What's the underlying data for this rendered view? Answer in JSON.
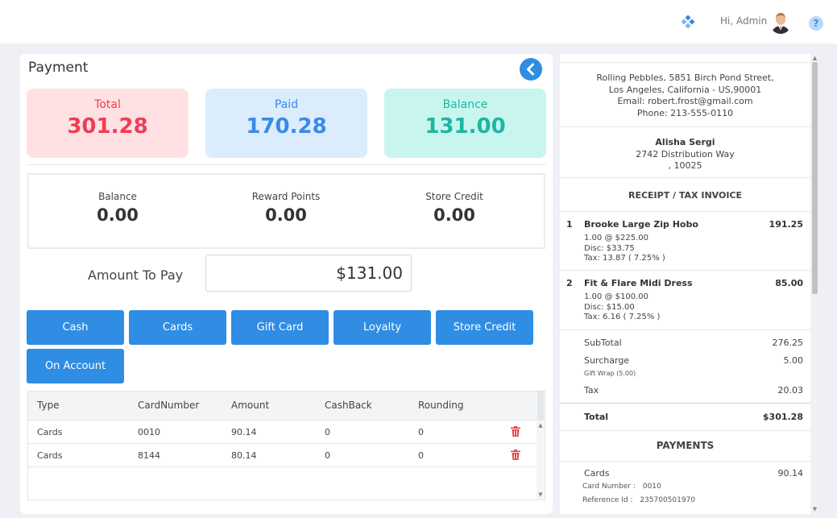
{
  "header": {
    "greeting": "Hi, Admin",
    "help_glyph": "?",
    "icons": [
      "diamond-grid-icon",
      "avatar",
      "help-icon"
    ]
  },
  "payment": {
    "title": "Payment",
    "summary": {
      "total_label": "Total",
      "total_value": "301.28",
      "paid_label": "Paid",
      "paid_value": "170.28",
      "balance_label": "Balance",
      "balance_value": "131.00"
    },
    "info": {
      "balance_label": "Balance",
      "balance_value": "0.00",
      "reward_label": "Reward Points",
      "reward_value": "0.00",
      "credit_label": "Store Credit",
      "credit_value": "0.00"
    },
    "amount_to_pay_label": "Amount To Pay",
    "amount_to_pay_value": "$131.00",
    "buttons": [
      "Cash",
      "Cards",
      "Gift Card",
      "Loyalty",
      "Store Credit",
      "On Account"
    ],
    "table": {
      "headers": [
        "Type",
        "CardNumber",
        "Amount",
        "CashBack",
        "Rounding"
      ],
      "rows": [
        [
          "Cards",
          "0010",
          "90.14",
          "0",
          "0"
        ],
        [
          "Cards",
          "8144",
          "80.14",
          "0",
          "0"
        ]
      ]
    }
  },
  "receipt": {
    "store_address": [
      "Rolling Pebbles, 5851 Birch Pond Street,",
      "Los Angeles, California - US,90001",
      "Email: robert.frost@gmail.com",
      "Phone: 213-555-0110"
    ],
    "customer": {
      "name": "Alisha Sergi",
      "line1": "2742 Distribution Way",
      "line2": ", 10025"
    },
    "title": "RECEIPT / TAX INVOICE",
    "items": [
      {
        "num": "1",
        "name": "Brooke Large Zip Hobo",
        "price": "191.25",
        "qty": "1.00 @ $225.00",
        "disc": "Disc: $33.75",
        "tax": "Tax: 13.87 ( 7.25% )"
      },
      {
        "num": "2",
        "name": "Fit & Flare Midi Dress",
        "price": "85.00",
        "qty": "1.00 @ $100.00",
        "disc": "Disc: $15.00",
        "tax": "Tax: 6.16 ( 7.25% )"
      }
    ],
    "subtotal_label": "SubTotal",
    "subtotal_value": "276.25",
    "surcharge_label": "Surcharge",
    "surcharge_value": "5.00",
    "surcharge_note": "Gift Wrap (5.00)",
    "tax_label": "Tax",
    "tax_value": "20.03",
    "total_label": "Total",
    "total_value": "$301.28",
    "payments_title": "PAYMENTS",
    "payment": {
      "type": "Cards",
      "amount": "90.14",
      "card_number_label": "Card Number :",
      "card_number": "0010",
      "reference_label": "Reference Id :",
      "reference": "235700501970"
    }
  },
  "colors": {
    "primary": "#2f8de4",
    "total": "#ef3d52",
    "paid": "#3a8ae6",
    "balance": "#1cb6a3",
    "delete": "#e5484d"
  }
}
